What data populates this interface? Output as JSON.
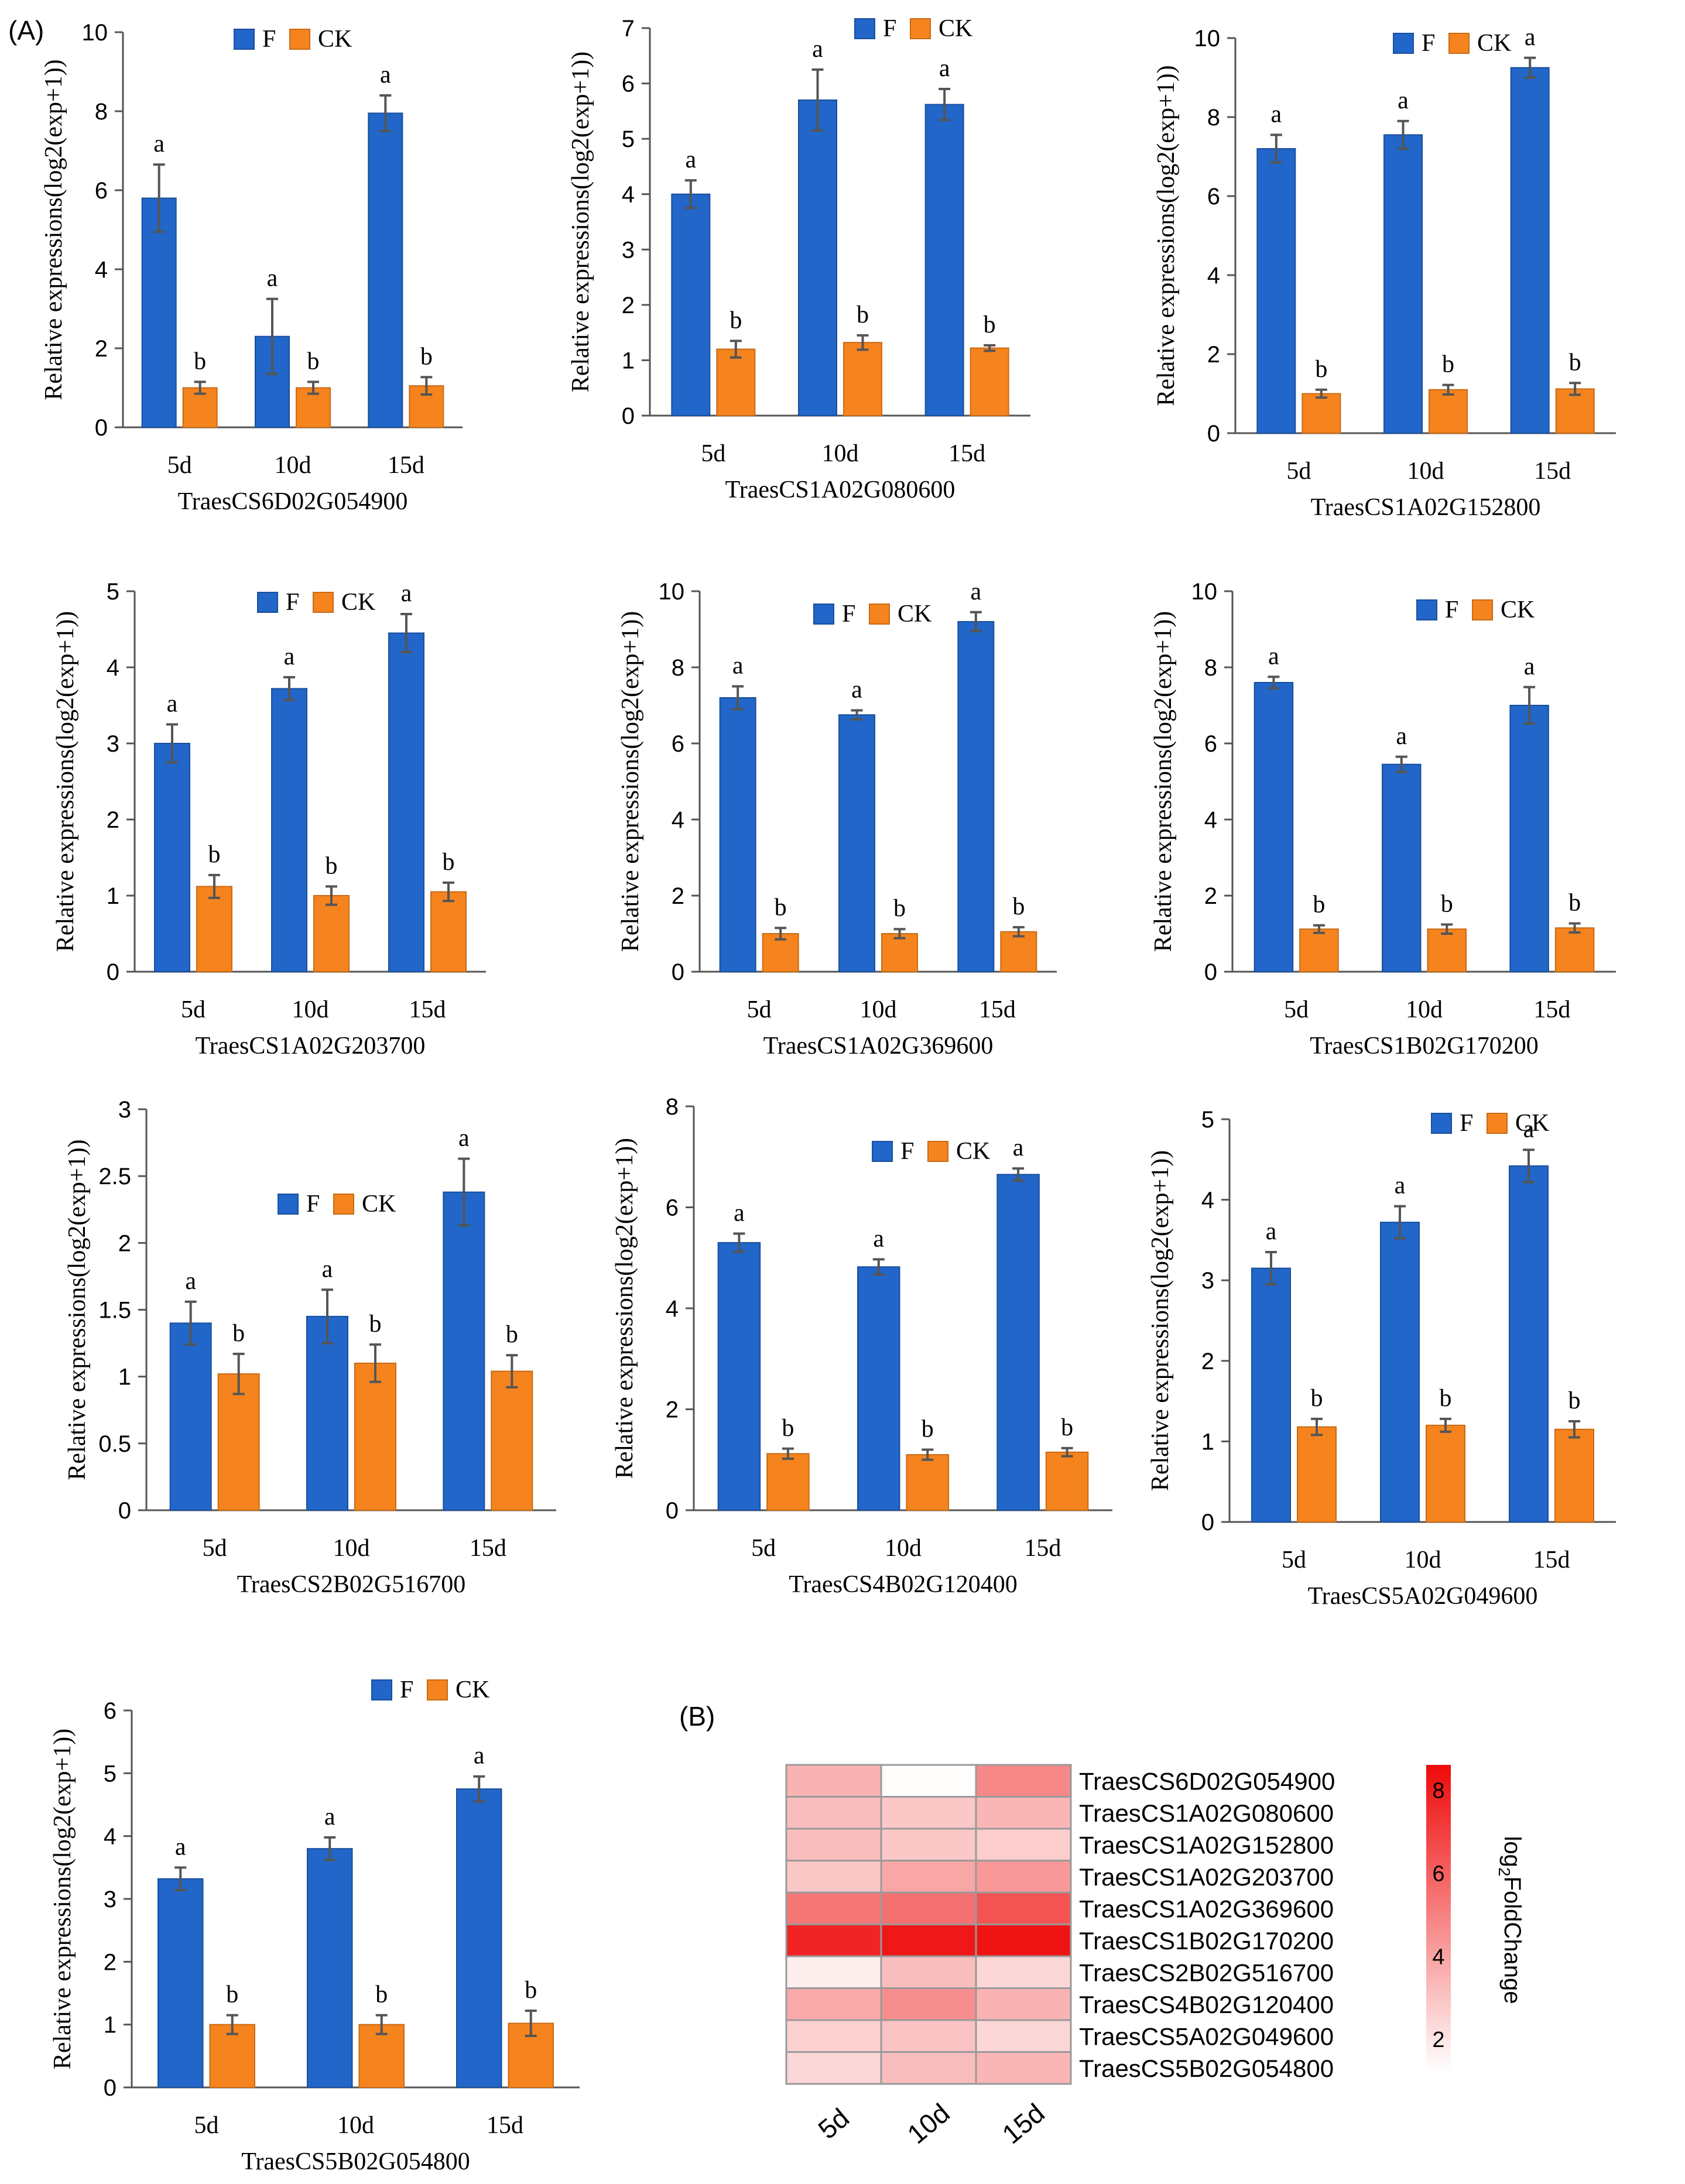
{
  "panel_labels": {
    "a": "(A)",
    "b": "(B)"
  },
  "colors": {
    "F": "#2166c8",
    "CK": "#f5841f",
    "error_bar": "#555555",
    "heat_low": "#ffffff",
    "heat_high": "#ee0a0a",
    "heat_grid": "#9a9a9a"
  },
  "chart_data": [
    {
      "type": "bar",
      "title": "",
      "xlabel": "TraesCS6D02G054900",
      "ylabel": "Relative expressions(log2(exp+1))",
      "categories": [
        "5d",
        "10d",
        "15d"
      ],
      "ylim": [
        0,
        10
      ],
      "yticks": [
        "0",
        "2",
        "4",
        "6",
        "8",
        "10"
      ],
      "series": [
        {
          "name": "F",
          "values": [
            5.8,
            2.3,
            7.95
          ],
          "errors": [
            0.85,
            0.95,
            0.45
          ],
          "letters": [
            "a",
            "a",
            "a"
          ]
        },
        {
          "name": "CK",
          "values": [
            1.0,
            1.0,
            1.05
          ],
          "errors": [
            0.15,
            0.15,
            0.22
          ],
          "letters": [
            "b",
            "b",
            "b"
          ]
        }
      ],
      "legend": "top-center"
    },
    {
      "type": "bar",
      "title": "",
      "xlabel": "TraesCS1A02G080600",
      "ylabel": "Relative expressions(log2(exp+1))",
      "categories": [
        "5d",
        "10d",
        "15d"
      ],
      "ylim": [
        0,
        7
      ],
      "yticks": [
        "0",
        "1",
        "2",
        "3",
        "4",
        "5",
        "6",
        "7"
      ],
      "series": [
        {
          "name": "F",
          "values": [
            4.0,
            5.7,
            5.62
          ],
          "errors": [
            0.25,
            0.55,
            0.28
          ],
          "letters": [
            "a",
            "a",
            "a"
          ]
        },
        {
          "name": "CK",
          "values": [
            1.2,
            1.32,
            1.22
          ],
          "errors": [
            0.15,
            0.13,
            0.05
          ],
          "letters": [
            "b",
            "b",
            "b"
          ]
        }
      ],
      "legend": "top-center"
    },
    {
      "type": "bar",
      "title": "",
      "xlabel": "TraesCS1A02G152800",
      "ylabel": "Relative expressions(log2(exp+1))",
      "categories": [
        "5d",
        "10d",
        "15d"
      ],
      "ylim": [
        0,
        10
      ],
      "yticks": [
        "0",
        "2",
        "4",
        "6",
        "8",
        "10"
      ],
      "series": [
        {
          "name": "F",
          "values": [
            7.2,
            7.55,
            9.25
          ],
          "errors": [
            0.35,
            0.35,
            0.25
          ],
          "letters": [
            "a",
            "a",
            "a"
          ]
        },
        {
          "name": "CK",
          "values": [
            1.0,
            1.1,
            1.12
          ],
          "errors": [
            0.1,
            0.12,
            0.15
          ],
          "letters": [
            "b",
            "b",
            "b"
          ]
        }
      ],
      "legend": "top-center"
    },
    {
      "type": "bar",
      "title": "",
      "xlabel": "TraesCS1A02G203700",
      "ylabel": "Relative expressions(log2(exp+1))",
      "categories": [
        "5d",
        "10d",
        "15d"
      ],
      "ylim": [
        0,
        5
      ],
      "yticks": [
        "0",
        "1",
        "2",
        "3",
        "4",
        "5"
      ],
      "series": [
        {
          "name": "F",
          "values": [
            3.0,
            3.72,
            4.45
          ],
          "errors": [
            0.25,
            0.15,
            0.25
          ],
          "letters": [
            "a",
            "a",
            "a"
          ]
        },
        {
          "name": "CK",
          "values": [
            1.12,
            1.0,
            1.05
          ],
          "errors": [
            0.15,
            0.12,
            0.12
          ],
          "letters": [
            "b",
            "b",
            "b"
          ]
        }
      ],
      "legend": "top-center"
    },
    {
      "type": "bar",
      "title": "",
      "xlabel": "TraesCS1A02G369600",
      "ylabel": "Relative expressions(log2(exp+1))",
      "categories": [
        "5d",
        "10d",
        "15d"
      ],
      "ylim": [
        0,
        10
      ],
      "yticks": [
        "0",
        "2",
        "4",
        "6",
        "8",
        "10"
      ],
      "series": [
        {
          "name": "F",
          "values": [
            7.2,
            6.75,
            9.2
          ],
          "errors": [
            0.3,
            0.12,
            0.25
          ],
          "letters": [
            "a",
            "a",
            "a"
          ]
        },
        {
          "name": "CK",
          "values": [
            1.0,
            1.0,
            1.05
          ],
          "errors": [
            0.15,
            0.12,
            0.12
          ],
          "letters": [
            "b",
            "b",
            "b"
          ]
        }
      ],
      "legend": "top-center"
    },
    {
      "type": "bar",
      "title": "",
      "xlabel": "TraesCS1B02G170200",
      "ylabel": "Relative expressions(log2(exp+1))",
      "categories": [
        "5d",
        "10d",
        "15d"
      ],
      "ylim": [
        0,
        10
      ],
      "yticks": [
        "0",
        "2",
        "4",
        "6",
        "8",
        "10"
      ],
      "series": [
        {
          "name": "F",
          "values": [
            7.6,
            5.45,
            7.0
          ],
          "errors": [
            0.15,
            0.2,
            0.48
          ],
          "letters": [
            "a",
            "a",
            "a"
          ]
        },
        {
          "name": "CK",
          "values": [
            1.12,
            1.12,
            1.15
          ],
          "errors": [
            0.1,
            0.12,
            0.12
          ],
          "letters": [
            "b",
            "b",
            "b"
          ]
        }
      ],
      "legend": "top-center"
    },
    {
      "type": "bar",
      "title": "",
      "xlabel": "TraesCS2B02G516700",
      "ylabel": "Relative expressions(log2(exp+1))",
      "categories": [
        "5d",
        "10d",
        "15d"
      ],
      "ylim": [
        0,
        3
      ],
      "yticks": [
        "0",
        "0.5",
        "1",
        "1.5",
        "2",
        "2.5",
        "3"
      ],
      "series": [
        {
          "name": "F",
          "values": [
            1.4,
            1.45,
            2.38
          ],
          "errors": [
            0.16,
            0.2,
            0.25
          ],
          "letters": [
            "a",
            "a",
            "a"
          ]
        },
        {
          "name": "CK",
          "values": [
            1.02,
            1.1,
            1.04
          ],
          "errors": [
            0.15,
            0.14,
            0.12
          ],
          "letters": [
            "b",
            "b",
            "b"
          ]
        }
      ],
      "legend": "center"
    },
    {
      "type": "bar",
      "title": "",
      "xlabel": "TraesCS4B02G120400",
      "ylabel": "Relative expressions(log2(exp+1))",
      "categories": [
        "5d",
        "10d",
        "15d"
      ],
      "ylim": [
        0,
        8
      ],
      "yticks": [
        "0",
        "2",
        "4",
        "6",
        "8"
      ],
      "series": [
        {
          "name": "F",
          "values": [
            5.3,
            4.82,
            6.65
          ],
          "errors": [
            0.18,
            0.15,
            0.12
          ],
          "letters": [
            "a",
            "a",
            "a"
          ]
        },
        {
          "name": "CK",
          "values": [
            1.12,
            1.1,
            1.15
          ],
          "errors": [
            0.1,
            0.1,
            0.08
          ],
          "letters": [
            "b",
            "b",
            "b"
          ]
        }
      ],
      "legend": "top-center"
    },
    {
      "type": "bar",
      "title": "",
      "xlabel": "TraesCS5A02G049600",
      "ylabel": "Relative expressions(log2(exp+1))",
      "categories": [
        "5d",
        "10d",
        "15d"
      ],
      "ylim": [
        0,
        5
      ],
      "yticks": [
        "0",
        "1",
        "2",
        "3",
        "4",
        "5"
      ],
      "series": [
        {
          "name": "F",
          "values": [
            3.15,
            3.72,
            4.42
          ],
          "errors": [
            0.2,
            0.2,
            0.2
          ],
          "letters": [
            "a",
            "a",
            "a"
          ]
        },
        {
          "name": "CK",
          "values": [
            1.18,
            1.2,
            1.15
          ],
          "errors": [
            0.1,
            0.08,
            0.1
          ],
          "letters": [
            "b",
            "b",
            "b"
          ]
        }
      ],
      "legend": "top-center"
    },
    {
      "type": "bar",
      "title": "",
      "xlabel": "TraesCS5B02G054800",
      "ylabel": "Relative expressions(log2(exp+1))",
      "categories": [
        "5d",
        "10d",
        "15d"
      ],
      "ylim": [
        0,
        6
      ],
      "yticks": [
        "0",
        "1",
        "2",
        "3",
        "4",
        "5",
        "6"
      ],
      "series": [
        {
          "name": "F",
          "values": [
            3.32,
            3.8,
            4.75
          ],
          "errors": [
            0.18,
            0.18,
            0.2
          ],
          "letters": [
            "a",
            "a",
            "a"
          ]
        },
        {
          "name": "CK",
          "values": [
            1.0,
            1.0,
            1.02
          ],
          "errors": [
            0.15,
            0.15,
            0.2
          ],
          "letters": [
            "b",
            "b",
            "b"
          ]
        }
      ],
      "legend": "top-center"
    },
    {
      "type": "heatmap",
      "columns": [
        "5d",
        "10d",
        "15d"
      ],
      "rows": [
        "TraesCS6D02G054900",
        "TraesCS1A02G080600",
        "TraesCS1A02G152800",
        "TraesCS1A02G203700",
        "TraesCS1A02G369600",
        "TraesCS1B02G170200",
        "TraesCS2B02G516700",
        "TraesCS4B02G120400",
        "TraesCS5A02G049600",
        "TraesCS5B02G054800"
      ],
      "values": [
        [
          3.5,
          1.3,
          4.8
        ],
        [
          3.2,
          2.9,
          3.4
        ],
        [
          3.2,
          2.9,
          2.7
        ],
        [
          2.9,
          3.9,
          4.3
        ],
        [
          5.3,
          5.5,
          6.4
        ],
        [
          7.8,
          8.2,
          8.3
        ],
        [
          1.7,
          3.2,
          2.4
        ],
        [
          3.8,
          4.6,
          3.5
        ],
        [
          2.6,
          3.0,
          2.4
        ],
        [
          2.4,
          3.2,
          3.4
        ]
      ],
      "colorbar": {
        "label": "log2FoldChange",
        "label_base": "log",
        "label_sub": "2",
        "label_rest": "FoldChange",
        "range": [
          1.2,
          8.6
        ],
        "ticks": [
          "2",
          "4",
          "6",
          "8"
        ]
      }
    }
  ]
}
